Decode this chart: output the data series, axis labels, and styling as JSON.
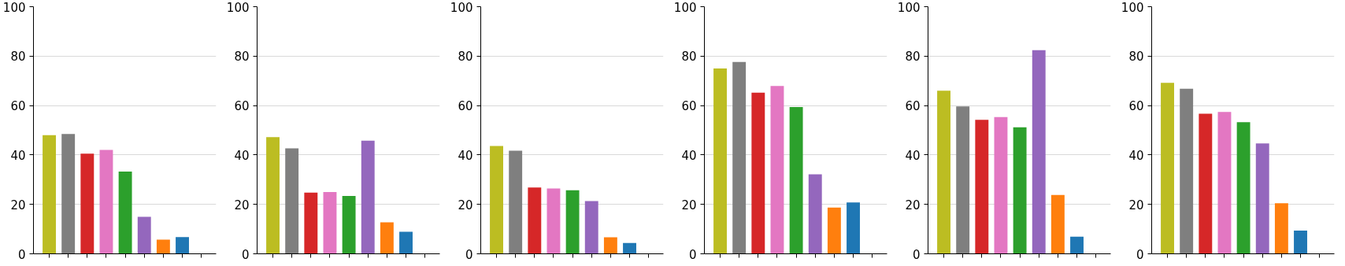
{
  "chart_data": [
    {
      "type": "bar",
      "categories": [
        null,
        null,
        null,
        null,
        null,
        null,
        null,
        null,
        null
      ],
      "colors": [
        "#bcbd22",
        "#7f7f7f",
        "#d62728",
        "#e377c2",
        "#2ca02c",
        "#9467bd",
        "#ff7f0e",
        "#1f77b4",
        "#1f77b4"
      ],
      "values": [
        48,
        48.5,
        40.5,
        42,
        33.3,
        15,
        5.7,
        6.8,
        null
      ],
      "ylim": [
        0,
        100
      ],
      "yticks": [
        0,
        20,
        40,
        60,
        80,
        100
      ],
      "grid": "y"
    },
    {
      "type": "bar",
      "categories": [
        null,
        null,
        null,
        null,
        null,
        null,
        null,
        null,
        null
      ],
      "colors": [
        "#bcbd22",
        "#7f7f7f",
        "#d62728",
        "#e377c2",
        "#2ca02c",
        "#9467bd",
        "#ff7f0e",
        "#1f77b4",
        "#1f77b4"
      ],
      "values": [
        47.2,
        42.7,
        24.8,
        25,
        23.4,
        45.8,
        12.7,
        8.9,
        null
      ],
      "ylim": [
        0,
        100
      ],
      "yticks": [
        0,
        20,
        40,
        60,
        80,
        100
      ],
      "grid": "y"
    },
    {
      "type": "bar",
      "categories": [
        null,
        null,
        null,
        null,
        null,
        null,
        null,
        null,
        null
      ],
      "colors": [
        "#bcbd22",
        "#7f7f7f",
        "#d62728",
        "#e377c2",
        "#2ca02c",
        "#9467bd",
        "#ff7f0e",
        "#1f77b4",
        "#1f77b4"
      ],
      "values": [
        43.6,
        41.7,
        26.8,
        26.4,
        25.7,
        21.3,
        6.7,
        4.4,
        null
      ],
      "ylim": [
        0,
        100
      ],
      "yticks": [
        0,
        20,
        40,
        60,
        80,
        100
      ],
      "grid": "y"
    },
    {
      "type": "bar",
      "categories": [
        null,
        null,
        null,
        null,
        null,
        null,
        null,
        null,
        null
      ],
      "colors": [
        "#bcbd22",
        "#7f7f7f",
        "#d62728",
        "#e377c2",
        "#2ca02c",
        "#9467bd",
        "#ff7f0e",
        "#1f77b4",
        "#1f77b4"
      ],
      "values": [
        75,
        77.6,
        65.2,
        67.9,
        59.4,
        32.2,
        18.7,
        20.8,
        null
      ],
      "ylim": [
        0,
        100
      ],
      "yticks": [
        0,
        20,
        40,
        60,
        80,
        100
      ],
      "grid": "y"
    },
    {
      "type": "bar",
      "categories": [
        null,
        null,
        null,
        null,
        null,
        null,
        null,
        null,
        null
      ],
      "colors": [
        "#bcbd22",
        "#7f7f7f",
        "#d62728",
        "#e377c2",
        "#2ca02c",
        "#9467bd",
        "#ff7f0e",
        "#1f77b4",
        "#1f77b4"
      ],
      "values": [
        66,
        59.6,
        54.2,
        55.3,
        51.2,
        82.4,
        23.8,
        6.9,
        null
      ],
      "ylim": [
        0,
        100
      ],
      "yticks": [
        0,
        20,
        40,
        60,
        80,
        100
      ],
      "grid": "y"
    },
    {
      "type": "bar",
      "categories": [
        null,
        null,
        null,
        null,
        null,
        null,
        null,
        null,
        null
      ],
      "colors": [
        "#bcbd22",
        "#7f7f7f",
        "#d62728",
        "#e377c2",
        "#2ca02c",
        "#9467bd",
        "#ff7f0e",
        "#1f77b4",
        "#1f77b4"
      ],
      "values": [
        69.2,
        66.8,
        56.7,
        57.4,
        53.3,
        44.7,
        20.5,
        9.4,
        null
      ],
      "ylim": [
        0,
        100
      ],
      "yticks": [
        0,
        20,
        40,
        60,
        80,
        100
      ],
      "grid": "y"
    }
  ]
}
